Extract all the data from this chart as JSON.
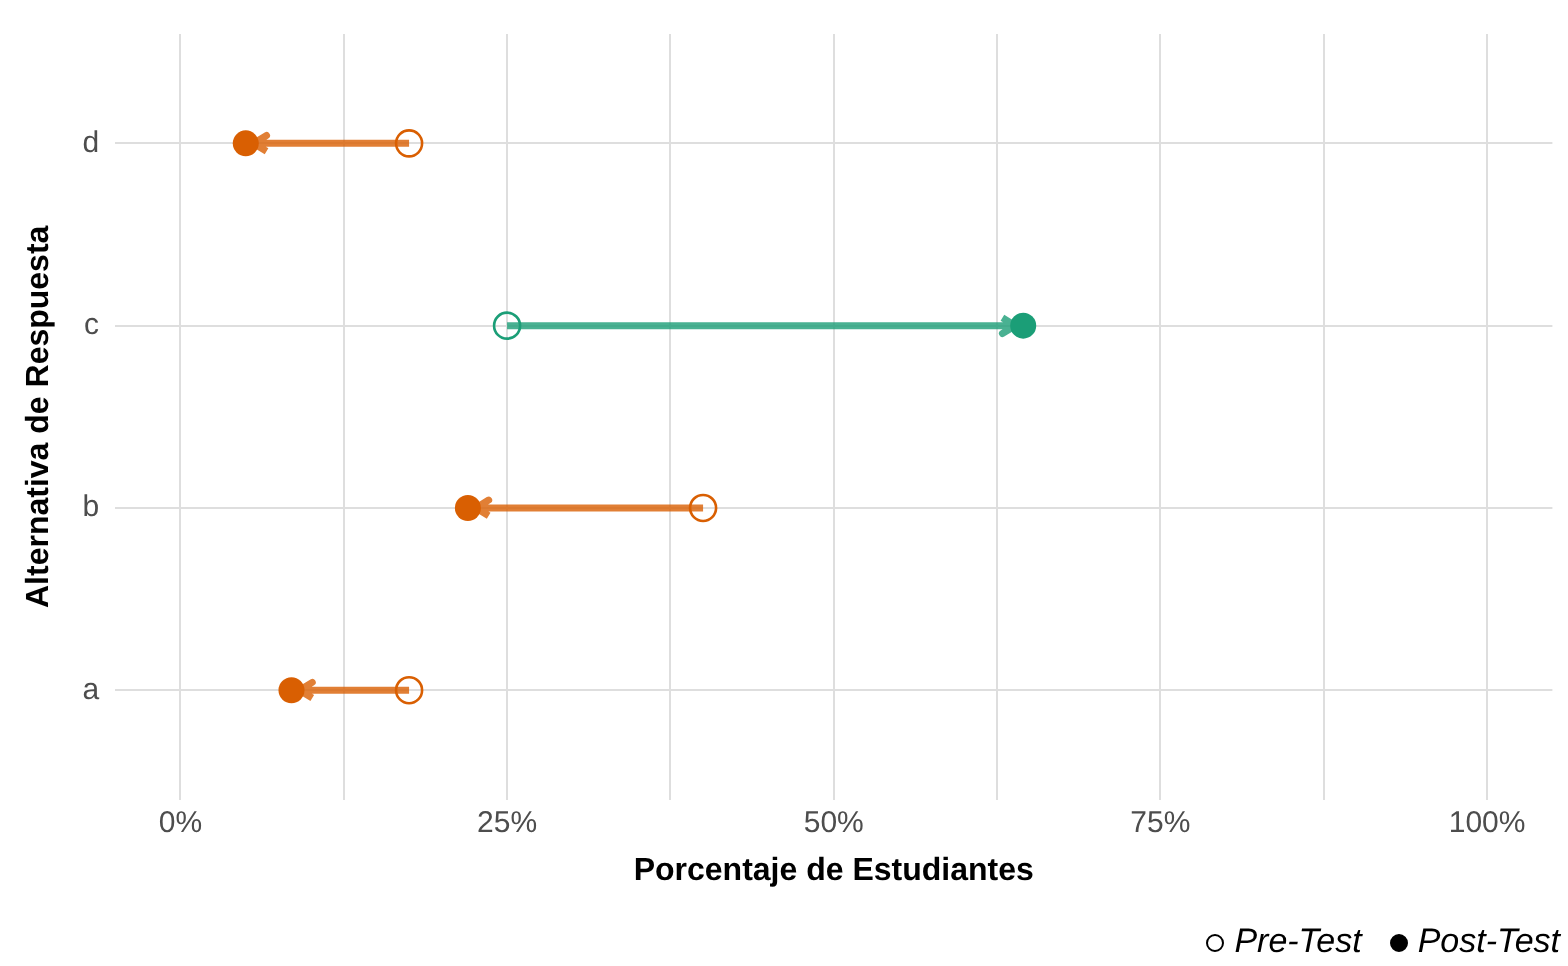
{
  "chart_data": {
    "type": "scatter",
    "orientation": "horizontal",
    "xlabel": "Porcentaje de Estudiantes",
    "ylabel": "Alternativa de Respuesta",
    "categories": [
      "d",
      "c",
      "b",
      "a"
    ],
    "series": [
      {
        "name": "Pre-Test",
        "marker": "circle",
        "values": [
          17.5,
          25,
          40,
          17.5
        ],
        "colors": [
          "#d95f02",
          "#1b9e77",
          "#d95f02",
          "#d95f02"
        ]
      },
      {
        "name": "Post-Test",
        "marker": "circle",
        "values": [
          5,
          64.5,
          22,
          8.5
        ],
        "colors": [
          "#d95f02",
          "#1b9e77",
          "#d95f02",
          "#d95f02"
        ]
      }
    ],
    "xlim": [
      -5,
      105
    ],
    "xticks": [
      {
        "value": 0,
        "label": "0%"
      },
      {
        "value": 12.5,
        "label": null
      },
      {
        "value": 25,
        "label": "25%"
      },
      {
        "value": 37.5,
        "label": null
      },
      {
        "value": 50,
        "label": "50%"
      },
      {
        "value": 62.5,
        "label": null
      },
      {
        "value": 75,
        "label": "75%"
      },
      {
        "value": 87.5,
        "label": null
      },
      {
        "value": 100,
        "label": "100%"
      }
    ],
    "grid": true,
    "legend": "bottom right"
  }
}
